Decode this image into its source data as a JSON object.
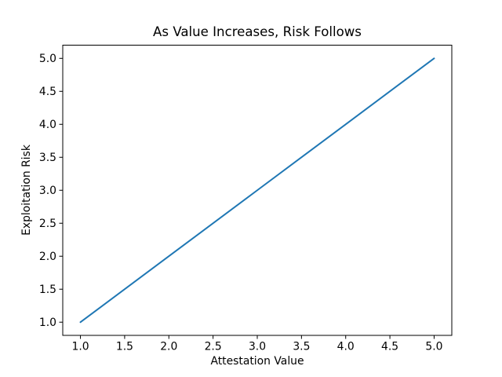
{
  "figure": {
    "background_color": "#ffffff"
  },
  "chart_data": {
    "type": "line",
    "title": "As Value Increases, Risk Follows",
    "xlabel": "Attestation Value",
    "ylabel": "Exploitation Risk",
    "x": [
      1,
      2,
      3,
      4,
      5
    ],
    "y": [
      1,
      2,
      3,
      4,
      5
    ],
    "xlim": [
      0.8,
      5.2
    ],
    "ylim": [
      0.8,
      5.2
    ],
    "xticks": [
      1.0,
      1.5,
      2.0,
      2.5,
      3.0,
      3.5,
      4.0,
      4.5,
      5.0
    ],
    "yticks": [
      1.0,
      1.5,
      2.0,
      2.5,
      3.0,
      3.5,
      4.0,
      4.5,
      5.0
    ],
    "xtick_labels": [
      "1.0",
      "1.5",
      "2.0",
      "2.5",
      "3.0",
      "3.5",
      "4.0",
      "4.5",
      "5.0"
    ],
    "ytick_labels": [
      "1.0",
      "1.5",
      "2.0",
      "2.5",
      "3.0",
      "3.5",
      "4.0",
      "4.5",
      "5.0"
    ],
    "line_color": "#1f77b4",
    "spine_color": "#000000",
    "text_color": "#000000",
    "grid": false,
    "markers": false,
    "legend_position": "none"
  }
}
